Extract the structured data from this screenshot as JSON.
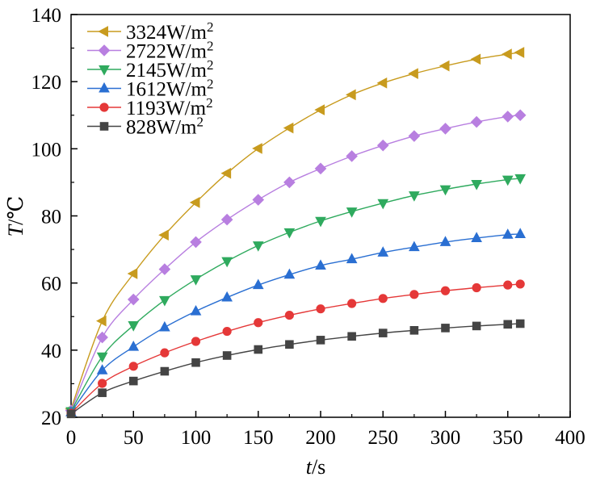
{
  "chart_data": {
    "type": "line",
    "title": "",
    "xlabel": {
      "var": "t",
      "unit": "/s"
    },
    "ylabel": {
      "var": "T",
      "unit": "/℃"
    },
    "xlim": [
      0,
      400
    ],
    "ylim": [
      20,
      140
    ],
    "xticks": [
      0,
      50,
      100,
      150,
      200,
      250,
      300,
      350,
      400
    ],
    "yticks": [
      20,
      40,
      60,
      80,
      100,
      120,
      140
    ],
    "grid": false,
    "legend_position": "top-left",
    "x": [
      0,
      25,
      50,
      75,
      100,
      125,
      150,
      175,
      200,
      225,
      250,
      275,
      300,
      325,
      350,
      360
    ],
    "series": [
      {
        "name": "3324W/m",
        "sup": "2",
        "color": "#C89B1E",
        "marker": "triangle-left",
        "values": [
          22.5,
          48.7,
          62.8,
          74.3,
          84.0,
          92.7,
          100.1,
          106.2,
          111.6,
          116.1,
          119.6,
          122.4,
          124.7,
          126.7,
          128.2,
          128.7
        ]
      },
      {
        "name": "2722W/m",
        "sup": "2",
        "color": "#B87FE0",
        "marker": "diamond",
        "values": [
          22.0,
          43.8,
          55.1,
          64.1,
          72.2,
          78.9,
          84.8,
          90.0,
          94.1,
          97.8,
          101.0,
          103.8,
          106.0,
          108.0,
          109.6,
          110.0
        ]
      },
      {
        "name": "2145W/m",
        "sup": "2",
        "color": "#2FAA5E",
        "marker": "triangle-down",
        "values": [
          21.8,
          38.1,
          47.4,
          54.9,
          61.1,
          66.5,
          71.2,
          75.1,
          78.5,
          81.3,
          83.8,
          86.1,
          87.9,
          89.5,
          90.8,
          91.2
        ]
      },
      {
        "name": "1612W/m",
        "sup": "2",
        "color": "#2A6FD2",
        "marker": "triangle-up",
        "values": [
          21.5,
          34.0,
          41.0,
          46.8,
          51.6,
          55.7,
          59.4,
          62.5,
          65.2,
          67.1,
          69.1,
          70.7,
          72.2,
          73.4,
          74.4,
          74.6
        ]
      },
      {
        "name": "1193W/m",
        "sup": "2",
        "color": "#E53838",
        "marker": "circle",
        "values": [
          21.2,
          30.1,
          35.2,
          39.2,
          42.6,
          45.6,
          48.2,
          50.4,
          52.3,
          53.9,
          55.4,
          56.6,
          57.7,
          58.6,
          59.4,
          59.7
        ]
      },
      {
        "name": "828W/m",
        "sup": "2",
        "color": "#444444",
        "marker": "square",
        "values": [
          21.0,
          27.3,
          30.8,
          33.7,
          36.3,
          38.4,
          40.2,
          41.7,
          43.0,
          44.1,
          45.1,
          45.9,
          46.6,
          47.2,
          47.7,
          47.9
        ]
      }
    ]
  }
}
